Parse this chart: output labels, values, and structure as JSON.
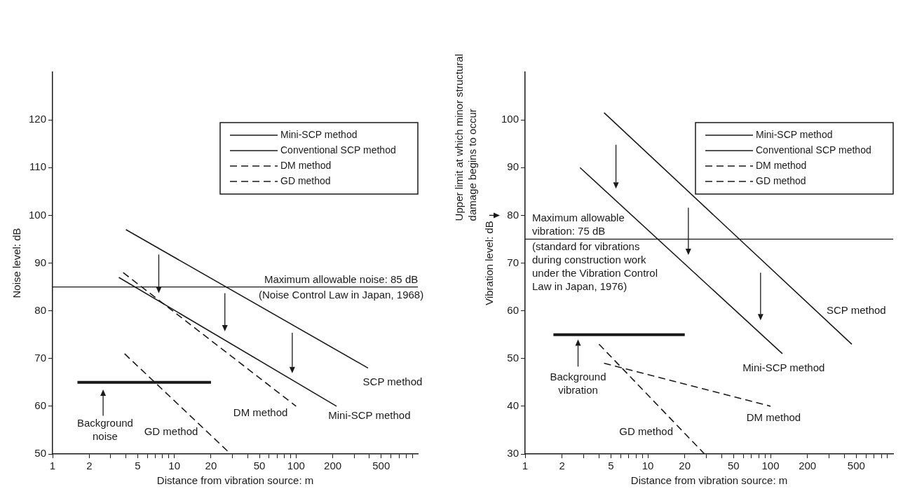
{
  "chart_data": [
    {
      "type": "line",
      "xlabel": "Distance from vibration source: m",
      "ylabel": "Noise level: dB",
      "log": "x",
      "xlim": [
        1,
        1000
      ],
      "ylim": [
        50,
        130
      ],
      "xticks": [
        1,
        2,
        {
          "value": 3,
          "label": null
        },
        {
          "value": 4,
          "label": null
        },
        5,
        {
          "value": 6,
          "label": null
        },
        {
          "value": 7,
          "label": null
        },
        {
          "value": 8,
          "label": null
        },
        {
          "value": 9,
          "label": null
        },
        10,
        20,
        {
          "value": 30,
          "label": null
        },
        {
          "value": 40,
          "label": null
        },
        50,
        {
          "value": 60,
          "label": null
        },
        {
          "value": 70,
          "label": null
        },
        {
          "value": 80,
          "label": null
        },
        {
          "value": 90,
          "label": null
        },
        100,
        200,
        {
          "value": 300,
          "label": null
        },
        {
          "value": 400,
          "label": null
        },
        500,
        {
          "value": 600,
          "label": null
        },
        {
          "value": 700,
          "label": null
        },
        {
          "value": 800,
          "label": null
        },
        {
          "value": 900,
          "label": null
        }
      ],
      "yticks": [
        50,
        60,
        70,
        80,
        90,
        100,
        110,
        120
      ],
      "grid": false,
      "legend": "top right",
      "marker": "none",
      "series": [
        {
          "name": "Mini-SCP method",
          "color": "#1a1a1a",
          "line_style": "solid",
          "x": [
            3.5,
            215
          ],
          "values": [
            87,
            60
          ]
        },
        {
          "name": "Conventional SCP method",
          "color": "#1a1a1a",
          "line_style": "solid",
          "x": [
            4,
            390
          ],
          "values": [
            97,
            68
          ]
        },
        {
          "name": "DM method",
          "color": "#1a1a1a",
          "line_style": "dashed",
          "x": [
            3.8,
            100
          ],
          "values": [
            88,
            60
          ]
        },
        {
          "name": "GD method",
          "color": "#1a1a1a",
          "line_style": "dashed",
          "x": [
            3.9,
            29
          ],
          "values": [
            71,
            50
          ]
        },
        {
          "color": "#1a1a1a",
          "line_style": "solid",
          "x": [
            1.6,
            20
          ],
          "values": [
            65,
            65
          ]
        }
      ],
      "ref_lines": [
        {
          "axis": "y",
          "value": 85,
          "label": "Maximum allowable noise: 85 dB\n(Noise Control Law in Japan, 1968)"
        }
      ],
      "annotations": [
        "SCP method",
        "Mini-SCP method",
        "DM method",
        "GD method",
        "Background\nnoise"
      ]
    },
    {
      "type": "line",
      "xlabel": "Distance from vibration source: m",
      "ylabel": "Vibration level: dB",
      "log": "x",
      "xlim": [
        1,
        1000
      ],
      "ylim": [
        30,
        110
      ],
      "xticks": [
        1,
        2,
        {
          "value": 3,
          "label": null
        },
        {
          "value": 4,
          "label": null
        },
        5,
        {
          "value": 6,
          "label": null
        },
        {
          "value": 7,
          "label": null
        },
        {
          "value": 8,
          "label": null
        },
        {
          "value": 9,
          "label": null
        },
        10,
        20,
        {
          "value": 30,
          "label": null
        },
        {
          "value": 40,
          "label": null
        },
        50,
        {
          "value": 60,
          "label": null
        },
        {
          "value": 70,
          "label": null
        },
        {
          "value": 80,
          "label": null
        },
        {
          "value": 90,
          "label": null
        },
        100,
        200,
        {
          "value": 300,
          "label": null
        },
        {
          "value": 400,
          "label": null
        },
        500,
        {
          "value": 600,
          "label": null
        },
        {
          "value": 700,
          "label": null
        },
        {
          "value": 800,
          "label": null
        },
        {
          "value": 900,
          "label": null
        }
      ],
      "yticks": [
        30,
        40,
        50,
        60,
        70,
        80,
        90,
        100
      ],
      "grid": false,
      "legend": "top right",
      "marker": "none",
      "series": [
        {
          "name": "Mini-SCP method",
          "color": "#1a1a1a",
          "line_style": "solid",
          "x": [
            2.8,
            125
          ],
          "values": [
            90,
            51
          ]
        },
        {
          "name": "Conventional SCP method",
          "color": "#1a1a1a",
          "line_style": "solid",
          "x": [
            4.4,
            460
          ],
          "values": [
            101.5,
            53
          ]
        },
        {
          "name": "DM method",
          "color": "#1a1a1a",
          "line_style": "dashed",
          "x": [
            4.4,
            100
          ],
          "values": [
            49,
            40
          ]
        },
        {
          "name": "GD method",
          "color": "#1a1a1a",
          "line_style": "dashed",
          "x": [
            4,
            29
          ],
          "values": [
            53,
            30
          ]
        },
        {
          "color": "#1a1a1a",
          "line_style": "solid",
          "x": [
            1.7,
            20
          ],
          "values": [
            55,
            55
          ]
        }
      ],
      "ref_lines": [
        {
          "axis": "y",
          "value": 75,
          "label": "Maximum allowable\nvibration: 75 dB\n(standard for vibrations\nduring construction work\nunder the Vibration Control\nLaw in Japan, 1976)"
        }
      ],
      "annotations": [
        "Upper limit at which minor structural\ndamage begins to occur",
        "SCP method",
        "Mini-SCP method",
        "DM method",
        "GD method",
        "Background\nvibration"
      ]
    }
  ]
}
